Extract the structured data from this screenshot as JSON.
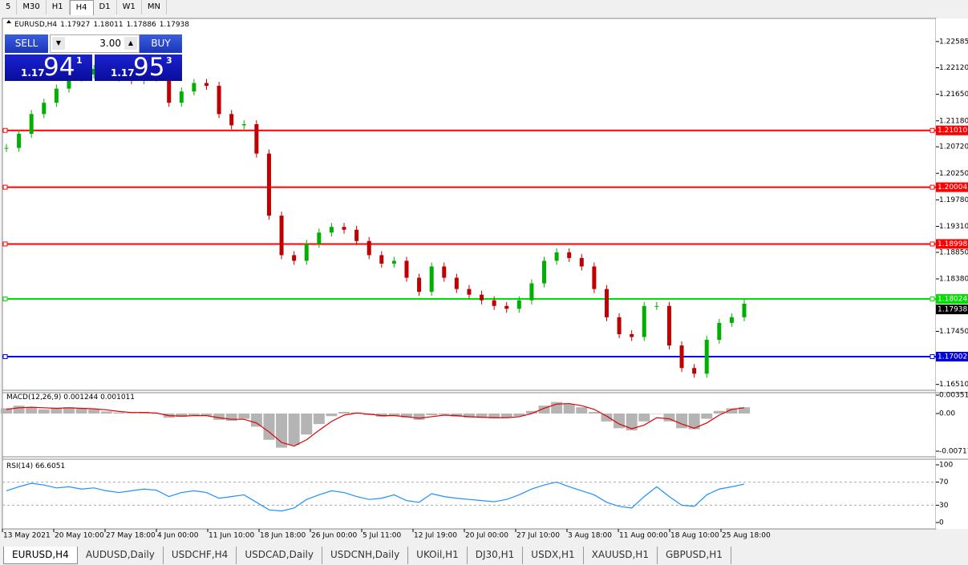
{
  "toolbar": {
    "timeframes": [
      "5",
      "M30",
      "H1",
      "H4",
      "D1",
      "W1",
      "MN"
    ],
    "active": 3
  },
  "trade_panel": {
    "sell": "SELL",
    "buy": "BUY",
    "lot": "3.00",
    "sell_price": {
      "big_figure": "1.17",
      "pips": "94",
      "fraction": "1"
    },
    "buy_price": {
      "big_figure": "1.17",
      "pips": "95",
      "fraction": "3"
    }
  },
  "chart": {
    "symbol": "EURUSD,H4",
    "ohlc": [
      1.17927,
      1.18011,
      1.17886,
      1.17938
    ],
    "ylim": [
      1.1642,
      1.2298
    ],
    "yticks": [
      1.22585,
      {
        "value": 1.2212,
        "label": "1.22120"
      },
      {
        "value": 1.2165,
        "label": "1.21650"
      },
      {
        "value": 1.2118,
        "label": "1.21180"
      },
      {
        "value": 1.2072,
        "label": "1.20720"
      },
      {
        "value": 1.2025,
        "label": "1.20250"
      },
      {
        "value": 1.1978,
        "label": "1.19780"
      },
      {
        "value": 1.1931,
        "label": "1.19310"
      },
      {
        "value": 1.1885,
        "label": "1.18850"
      },
      {
        "value": 1.1838,
        "label": "1.18380"
      },
      {
        "value": 1.1745,
        "label": "1.17450"
      },
      {
        "value": 1.1651,
        "label": "1.16510"
      }
    ],
    "levels": [
      {
        "value": 1.2101,
        "label": "1.21010",
        "color": "#ff0000"
      },
      {
        "value": 1.20004,
        "color": "#ff0000"
      },
      {
        "value": 1.18998,
        "color": "#ff0000"
      },
      {
        "value": 1.18024,
        "color": "#00e000"
      },
      {
        "value": 1.17002,
        "color": "#0000e0"
      }
    ],
    "current_price": 1.17938,
    "closes": [
      1.207,
      1.2095,
      1.213,
      1.215,
      1.2175,
      1.2195,
      1.22,
      1.221,
      1.22,
      1.2195,
      1.219,
      1.22,
      1.2195,
      1.215,
      1.217,
      1.2185,
      1.218,
      1.213,
      1.211,
      1.2112,
      1.206,
      1.195,
      1.188,
      1.187,
      1.19,
      1.192,
      1.193,
      1.1925,
      1.1905,
      1.188,
      1.1865,
      1.187,
      1.184,
      1.1815,
      1.186,
      1.184,
      1.182,
      1.181,
      1.18,
      1.179,
      1.1785,
      1.18,
      1.183,
      1.187,
      1.1885,
      1.1875,
      1.186,
      1.182,
      1.177,
      1.174,
      1.1735,
      1.179,
      1.179,
      1.172,
      1.168,
      1.167,
      1.173,
      1.176,
      1.177,
      1.1794
    ],
    "up_color": "#00b000",
    "down_color": "#c00000",
    "macd": {
      "name": "MACD(12,26,9)",
      "readings": [
        0.001244,
        0.001011
      ],
      "ylim": [
        -0.007178,
        0.003515
      ],
      "yticks": [
        0.003515,
        {
          "value": 0,
          "label": "0.00"
        },
        -0.007178
      ],
      "histogram": [
        0.001,
        0.0015,
        0.0012,
        0.0008,
        0.001,
        0.0012,
        0.001,
        0.0008,
        0.0004,
        0.0002,
        0.0001,
        0.0003,
        0.0,
        -0.0008,
        -0.0006,
        -0.0003,
        -0.0004,
        -0.0012,
        -0.0014,
        -0.001,
        -0.0025,
        -0.005,
        -0.0065,
        -0.006,
        -0.004,
        -0.002,
        -0.0005,
        0.0003,
        0.0002,
        -0.0003,
        -0.0006,
        -0.0004,
        -0.0008,
        -0.0012,
        -0.0003,
        -0.0002,
        -0.0006,
        -0.0008,
        -0.0008,
        -0.0009,
        -0.0008,
        -0.0005,
        0.0005,
        0.0015,
        0.0022,
        0.0018,
        0.0012,
        0.0003,
        -0.0015,
        -0.0028,
        -0.0032,
        -0.0015,
        0.0,
        -0.0015,
        -0.0028,
        -0.003,
        -0.001,
        0.0005,
        0.001,
        0.0012
      ],
      "signal": [
        0.0008,
        0.0011,
        0.0012,
        0.0011,
        0.001,
        0.0011,
        0.001,
        0.0009,
        0.0007,
        0.0004,
        0.0002,
        0.0002,
        0.0001,
        -0.0004,
        -0.0005,
        -0.0004,
        -0.0004,
        -0.0008,
        -0.0011,
        -0.0011,
        -0.0018,
        -0.0035,
        -0.0055,
        -0.0062,
        -0.005,
        -0.0032,
        -0.0015,
        -0.0003,
        0.0001,
        -0.0001,
        -0.0004,
        -0.0004,
        -0.0006,
        -0.0009,
        -0.0006,
        -0.0003,
        -0.0004,
        -0.0006,
        -0.0007,
        -0.0008,
        -0.0008,
        -0.0006,
        0.0,
        0.001,
        0.0018,
        0.0019,
        0.0015,
        0.0008,
        -0.0005,
        -0.002,
        -0.0029,
        -0.0022,
        -0.0008,
        -0.001,
        -0.002,
        -0.0028,
        -0.0018,
        -0.0003,
        0.0008,
        0.0011
      ],
      "histogram_color": "#b4b4b4",
      "signal_color": "#e00000"
    },
    "rsi": {
      "name": "RSI(14)",
      "reading": 66.6051,
      "ylim": [
        0,
        100
      ],
      "yticks": [
        100,
        70,
        30,
        0
      ],
      "color": "#1e90ff",
      "values": [
        55,
        62,
        68,
        65,
        60,
        62,
        58,
        60,
        55,
        52,
        55,
        58,
        56,
        45,
        52,
        55,
        52,
        42,
        45,
        48,
        35,
        22,
        20,
        25,
        40,
        48,
        55,
        52,
        45,
        40,
        42,
        48,
        38,
        35,
        50,
        45,
        42,
        40,
        38,
        36,
        40,
        48,
        58,
        65,
        70,
        62,
        55,
        48,
        35,
        28,
        25,
        45,
        62,
        45,
        30,
        28,
        48,
        58,
        62,
        66.6
      ]
    },
    "time_labels": [
      "13 May 2021",
      "20 May 10:00",
      "27 May 18:00",
      "4 Jun 00:00",
      "11 Jun 10:00",
      "18 Jun 18:00",
      "26 Jun 00:00",
      "5 Jul 11:00",
      "12 Jul 19:00",
      "20 Jul 00:00",
      "27 Jul 10:00",
      "3 Aug 18:00",
      "11 Aug 00:00",
      "18 Aug 10:00",
      "25 Aug 18:00"
    ]
  },
  "tabs": [
    "EURUSD,H4",
    "AUDUSD,Daily",
    "USDCHF,H4",
    "USDCAD,Daily",
    "USDCNH,Daily",
    "UKOil,H1",
    "DJ30,H1",
    "USDX,H1",
    "XAUUSD,H1",
    "GBPUSD,H1"
  ],
  "active_tab": 0
}
